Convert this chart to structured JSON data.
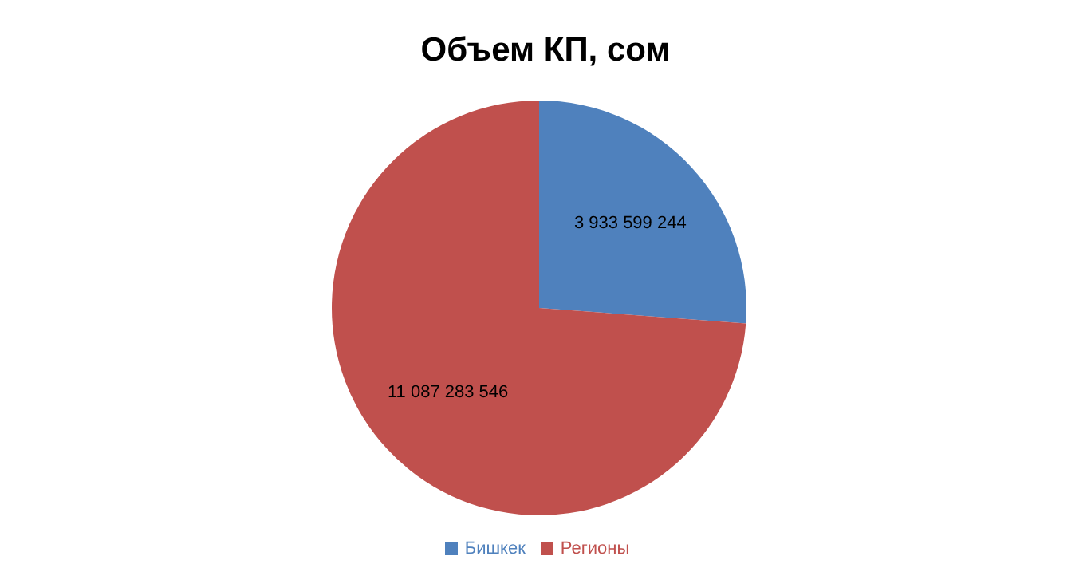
{
  "chart_data": {
    "type": "pie",
    "title": "Объем КП, сом",
    "categories": [
      "Бишкек",
      "Регионы"
    ],
    "values": [
      3933599244,
      11087283546
    ],
    "colors": [
      "#4f81bd",
      "#c0504d"
    ],
    "data_labels": true,
    "legend": "bottom"
  }
}
